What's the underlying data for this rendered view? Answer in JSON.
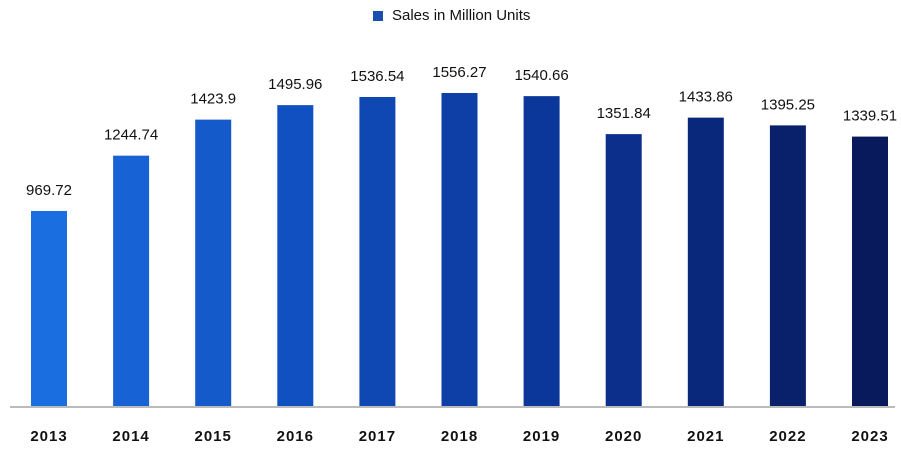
{
  "chart_data": {
    "type": "bar",
    "categories": [
      "2013",
      "2014",
      "2015",
      "2016",
      "2017",
      "2018",
      "2019",
      "2020",
      "2021",
      "2022",
      "2023"
    ],
    "series": [
      {
        "name": "Sales in Million Units",
        "color": "#1a4fb0",
        "colors": [
          "#1a6ee0",
          "#1763d6",
          "#145acb",
          "#1150c0",
          "#0f47b3",
          "#0d3fa6",
          "#0c379a",
          "#0b2f8a",
          "#0a287b",
          "#09216b",
          "#08195c"
        ],
        "values": [
          969.72,
          1244.74,
          1423.9,
          1495.96,
          1536.54,
          1556.27,
          1540.66,
          1351.84,
          1433.86,
          1395.25,
          1339.51
        ]
      }
    ],
    "legend": "top"
  }
}
